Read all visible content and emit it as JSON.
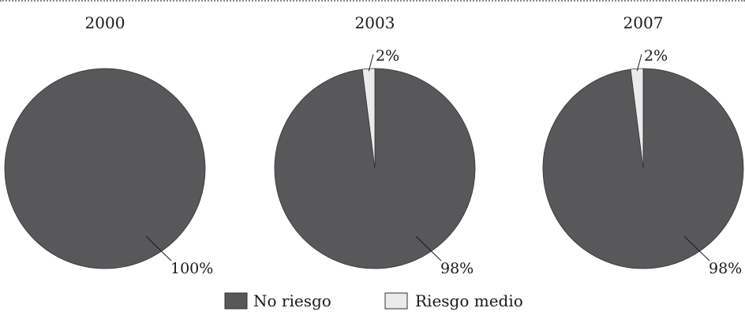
{
  "colors": {
    "no_riesgo": "#58585a",
    "riesgo_medio": "#ebebeb",
    "stroke": "#333333",
    "text": "#1a1a1a"
  },
  "legend": {
    "items": [
      {
        "label": "No riesgo",
        "color_key": "no_riesgo"
      },
      {
        "label": "Riesgo medio",
        "color_key": "riesgo_medio"
      }
    ]
  },
  "chart_data": [
    {
      "type": "pie",
      "title": "2000",
      "labels": [
        "No riesgo",
        "Riesgo medio"
      ],
      "values": [
        100,
        0
      ],
      "value_labels": [
        "100%",
        ""
      ]
    },
    {
      "type": "pie",
      "title": "2003",
      "labels": [
        "No riesgo",
        "Riesgo medio"
      ],
      "values": [
        98,
        2
      ],
      "value_labels": [
        "98%",
        "2%"
      ]
    },
    {
      "type": "pie",
      "title": "2007",
      "labels": [
        "No riesgo",
        "Riesgo medio"
      ],
      "values": [
        98,
        2
      ],
      "value_labels": [
        "98%",
        "2%"
      ]
    }
  ]
}
